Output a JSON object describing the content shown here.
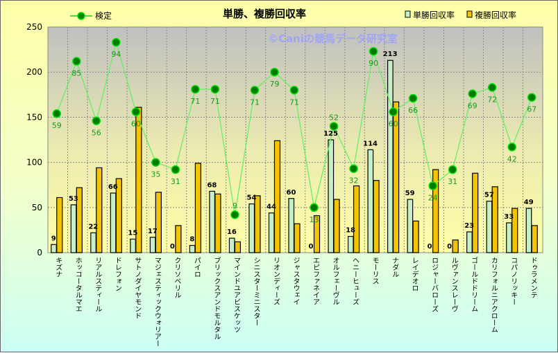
{
  "chart_data": {
    "type": "bar",
    "title": "単勝、複勝回収率",
    "watermark": "©Caniの競馬データ研究室",
    "ylim": [
      0,
      250
    ],
    "yticks": [
      0,
      50,
      100,
      150,
      200,
      250
    ],
    "grid": true,
    "categories": [
      "キズナ",
      "ホッコータルマエ",
      "リアルスティール",
      "ドレフォン",
      "サトノダイヤモンド",
      "マジェスティックウォリアー",
      "クリソベリル",
      "パイロ",
      "ブリックスアンドモルタル",
      "マインドユアビスケッツ",
      "シニスターミニスター",
      "リオンディーズ",
      "ジャスタウェイ",
      "エピファネイア",
      "オルフェーヴル",
      "ヘニーヒューズ",
      "モーリス",
      "ナダル",
      "レイデオロ",
      "ロジャーバローズ",
      "ルヴァンスレーヴ",
      "ゴールドドリーム",
      "カリフォルニアクローム",
      "コパノリッキー",
      "ドゥラメンテ"
    ],
    "series": [
      {
        "name": "単勝回収率",
        "type": "bar",
        "color": "#c8f0c8",
        "values": [
          9,
          53,
          22,
          66,
          15,
          17,
          0,
          8,
          68,
          16,
          54,
          44,
          60,
          0,
          125,
          18,
          114,
          213,
          59,
          0,
          0,
          23,
          57,
          33,
          49
        ]
      },
      {
        "name": "複勝回収率",
        "type": "bar",
        "color": "#f5c400",
        "values": [
          61,
          72,
          94,
          82,
          161,
          67,
          30,
          99,
          65,
          12,
          63,
          124,
          32,
          41,
          59,
          74,
          80,
          167,
          35,
          92,
          14,
          88,
          73,
          49,
          30
        ]
      },
      {
        "name": "検定",
        "type": "line",
        "color": "#00a000",
        "labels": [
          59,
          85,
          56,
          94,
          60,
          35,
          31,
          71,
          71,
          9,
          71,
          79,
          71,
          13,
          52,
          32,
          90,
          60,
          66,
          24,
          31,
          69,
          72,
          42,
          67
        ],
        "plotted": [
          154,
          212,
          146,
          233,
          156,
          100,
          92,
          181,
          181,
          42,
          180,
          200,
          180,
          50,
          140,
          93,
          223,
          156,
          171,
          74,
          92,
          176,
          183,
          117,
          172
        ]
      }
    ],
    "legend_placement": "top"
  }
}
